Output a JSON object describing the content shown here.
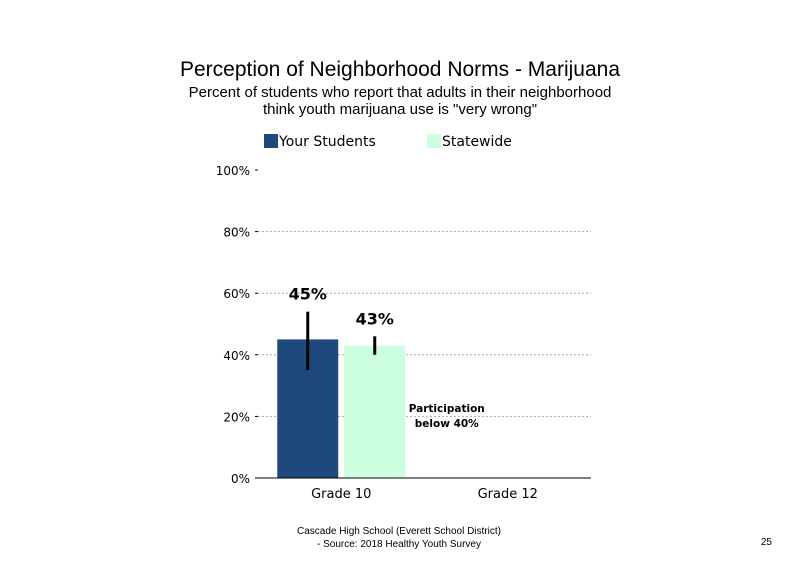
{
  "slide": {
    "title": "Perception of Neighborhood Norms - Marijuana",
    "subtitle_lines": [
      "Percent of students who report that adults in their neighborhood",
      "think youth marijuana use is \"very wrong\""
    ],
    "footer_lines": [
      "Cascade High School (Everett School District)",
      "- Source: 2018 Healthy  Youth Survey"
    ],
    "page_number": "25"
  },
  "colors": {
    "your_students": "#1F497D",
    "statewide": "#CCFFDD",
    "error_bar": "#000000",
    "gridline": "#999999",
    "axis": "#000000"
  },
  "chart_data": {
    "type": "bar",
    "title": "Perception of Neighborhood Norms - Marijuana",
    "subtitle": "Percent of students who report that adults in their neighborhood think youth marijuana use is \"very wrong\"",
    "categories": [
      "Grade 10",
      "Grade 12"
    ],
    "series": [
      {
        "name": "Your Students",
        "color": "#1F497D",
        "values": [
          45,
          null
        ],
        "data_labels": [
          "45%",
          ""
        ],
        "error_low": [
          35,
          null
        ],
        "error_high": [
          54,
          null
        ]
      },
      {
        "name": "Statewide",
        "color": "#CCFFDD",
        "values": [
          43,
          null
        ],
        "data_labels": [
          "43%",
          ""
        ],
        "error_low": [
          40,
          null
        ],
        "error_high": [
          46,
          null
        ]
      }
    ],
    "ylim": [
      0,
      100
    ],
    "yticks": [
      0,
      20,
      40,
      60,
      80,
      100
    ],
    "ytick_labels": [
      "0%",
      "20%",
      "40%",
      "60%",
      "80%",
      "100%"
    ],
    "gridlines": [
      20,
      40,
      60,
      80
    ],
    "grid": true,
    "legend": "top",
    "annotations": [
      {
        "category": "Grade 12",
        "lines": [
          "Participation",
          "below 40%"
        ]
      }
    ]
  }
}
